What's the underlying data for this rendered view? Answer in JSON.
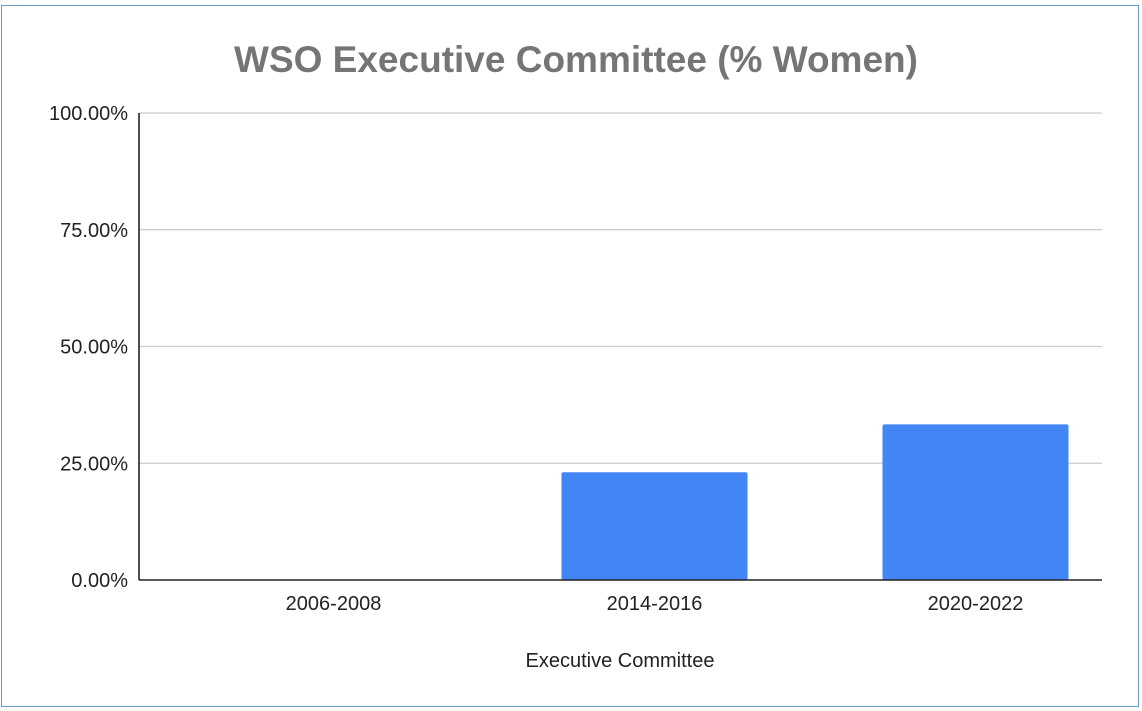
{
  "chart_data": {
    "type": "bar",
    "title": "WSO Executive Committee (% Women)",
    "xlabel": "Executive Committee",
    "ylabel": "",
    "categories": [
      "2006-2008",
      "2014-2016",
      "2020-2022"
    ],
    "values": [
      0,
      23.08,
      33.33
    ],
    "ylim": [
      0,
      100
    ],
    "yticks": [
      0,
      25,
      50,
      75,
      100
    ],
    "ytick_labels": [
      "0.00%",
      "25.00%",
      "50.00%",
      "75.00%",
      "100.00%"
    ],
    "grid": true,
    "legend": "none",
    "colors": {
      "bar": "#4285f4",
      "grid": "#cccccc",
      "axis": "#222222",
      "frame": "#6a9cc8",
      "title": "#757575"
    }
  }
}
